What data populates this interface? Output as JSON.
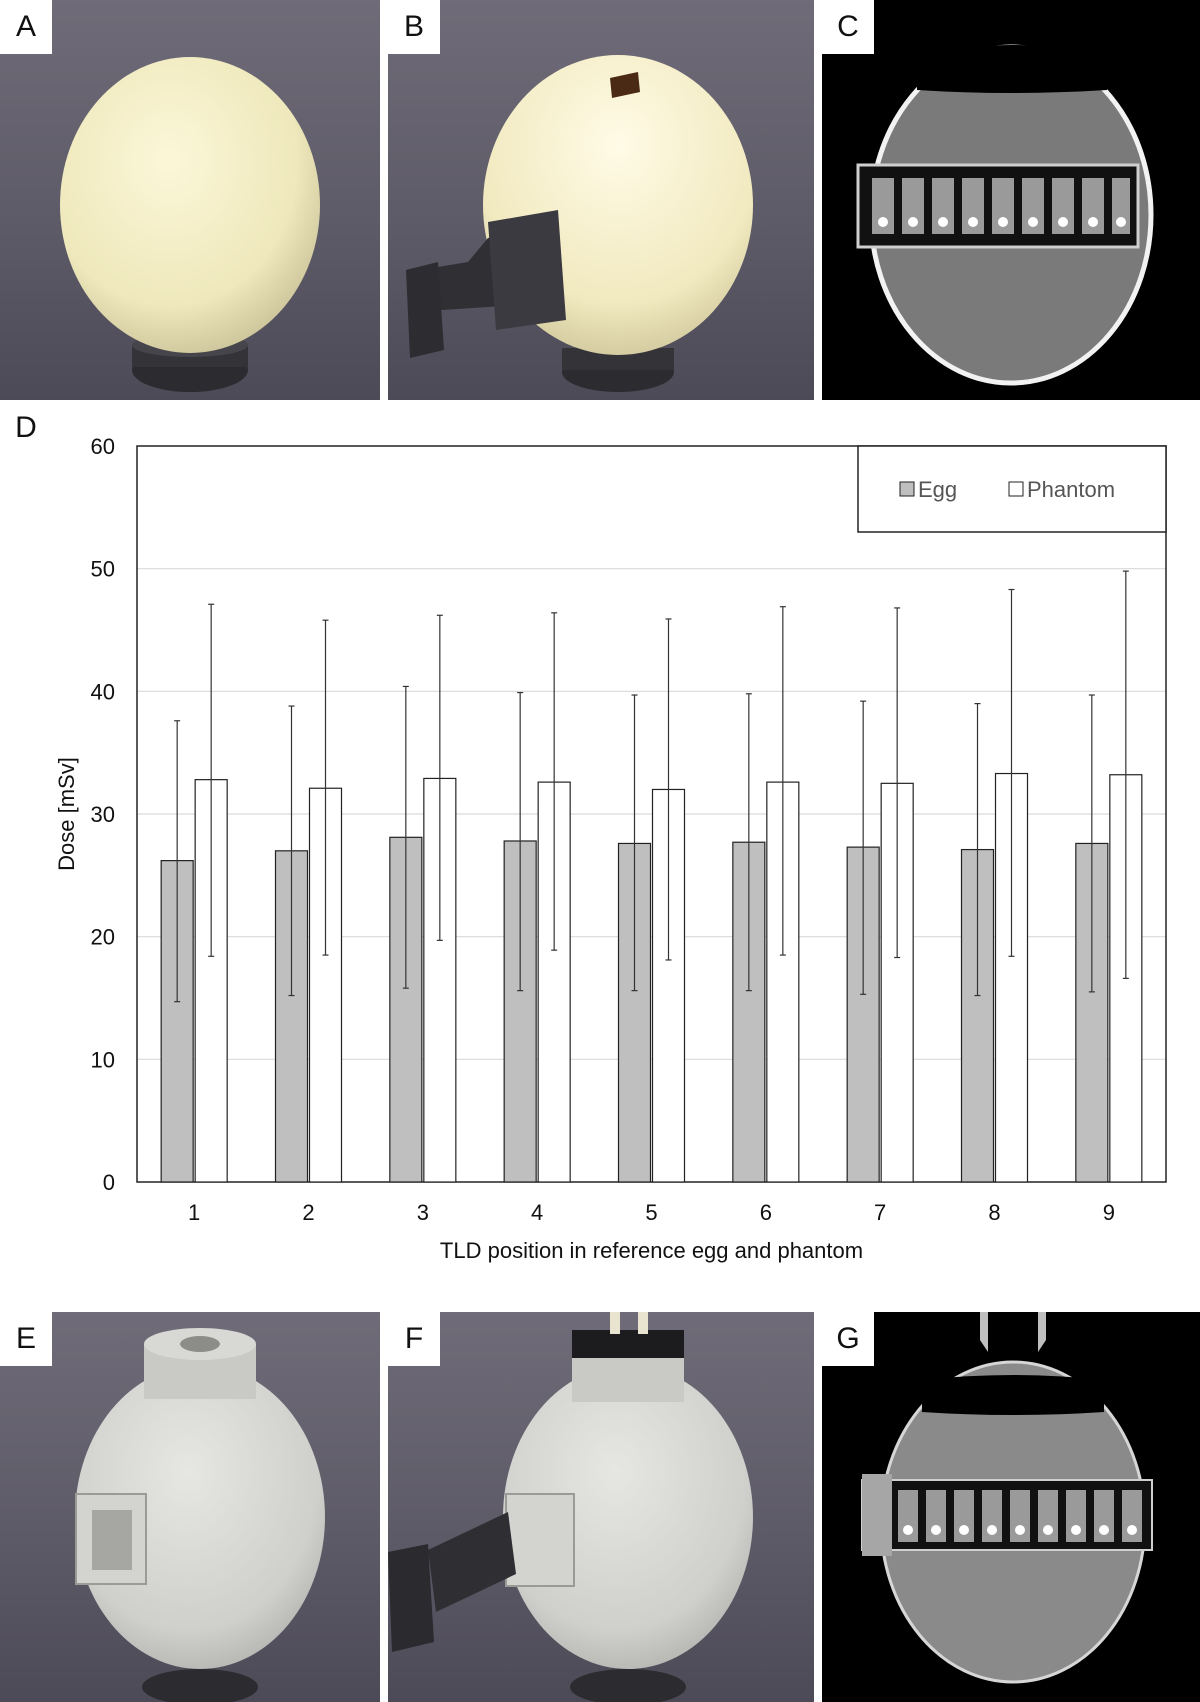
{
  "panels": {
    "a": {
      "label": "A"
    },
    "b": {
      "label": "B"
    },
    "c": {
      "label": "C"
    },
    "d": {
      "label": "D"
    },
    "e": {
      "label": "E"
    },
    "f": {
      "label": "F"
    },
    "g": {
      "label": "G"
    }
  },
  "colors": {
    "egg_bar": "#bfbfbf",
    "phantom_bar": "#ffffff",
    "bar_stroke": "#222222",
    "grid": "#d9d9d9"
  },
  "chart_data": {
    "type": "bar",
    "title": "",
    "xlabel": "TLD position in reference egg and phantom",
    "ylabel": "Dose [mSv]",
    "ylim": [
      0,
      60
    ],
    "yticks": [
      0,
      10,
      20,
      30,
      40,
      50,
      60
    ],
    "grid": true,
    "legend_position": "top-right",
    "categories": [
      "1",
      "2",
      "3",
      "4",
      "5",
      "6",
      "7",
      "8",
      "9"
    ],
    "series": [
      {
        "name": "Egg",
        "values": [
          26.2,
          27.0,
          28.1,
          27.8,
          27.6,
          27.7,
          27.3,
          27.1,
          27.6
        ],
        "err_low": [
          14.7,
          15.2,
          15.8,
          15.6,
          15.6,
          15.6,
          15.3,
          15.2,
          15.5
        ],
        "err_high": [
          37.6,
          38.8,
          40.4,
          39.9,
          39.7,
          39.8,
          39.2,
          39.0,
          39.7
        ]
      },
      {
        "name": "Phantom",
        "values": [
          32.8,
          32.1,
          32.9,
          32.6,
          32.0,
          32.6,
          32.5,
          33.3,
          33.2
        ],
        "err_low": [
          18.4,
          18.5,
          19.7,
          18.9,
          18.1,
          18.5,
          18.3,
          18.4,
          16.6
        ],
        "err_high": [
          47.1,
          45.8,
          46.2,
          46.4,
          45.9,
          46.9,
          46.8,
          48.3,
          49.8
        ]
      }
    ]
  }
}
